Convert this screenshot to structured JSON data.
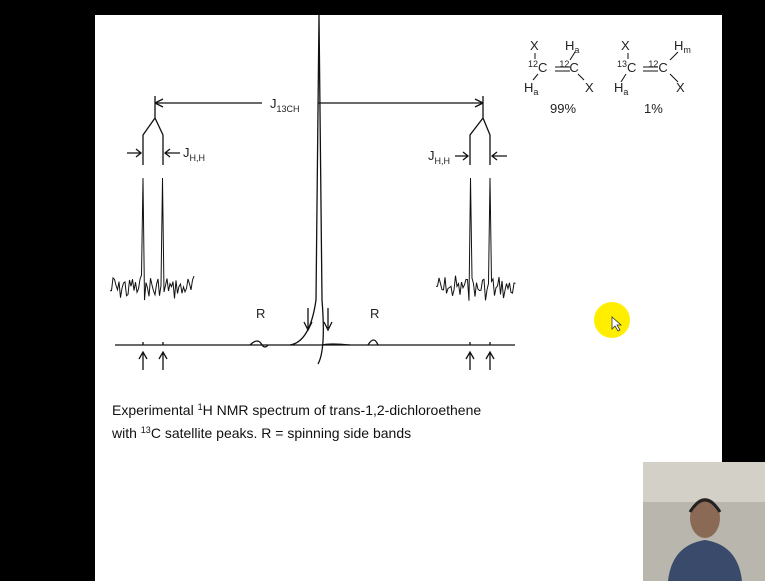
{
  "spectrum": {
    "coupling_main": {
      "symbol": "J",
      "sub": "13CH"
    },
    "coupling_left": {
      "symbol": "J",
      "sub": "H,H"
    },
    "coupling_right": {
      "symbol": "J",
      "sub": "H,H"
    },
    "sideband_left": "R",
    "sideband_right": "R"
  },
  "molecules": [
    {
      "top_left": "X",
      "top_right": "H",
      "top_right_sub": "a",
      "c1_sup": "12",
      "c1": "C",
      "c2_sup": "12",
      "c2": "C",
      "bottom_left": "H",
      "bottom_left_sub": "a",
      "bottom_right": "X",
      "abundance": "99%"
    },
    {
      "top_left": "X",
      "top_right": "H",
      "top_right_sub": "m",
      "c1_sup": "13",
      "c1": "C",
      "c2_sup": "12",
      "c2": "C",
      "bottom_left": "H",
      "bottom_left_sub": "a",
      "bottom_right": "X",
      "abundance": "1%"
    }
  ],
  "caption": {
    "line1_pre": "Experimental ",
    "line1_sup": "1",
    "line1_post": "H NMR spectrum of trans-1,2-dichloroethene",
    "line2_pre": "with ",
    "line2_sup": "13",
    "line2_post": "C satellite peaks.  R = spinning side bands"
  }
}
